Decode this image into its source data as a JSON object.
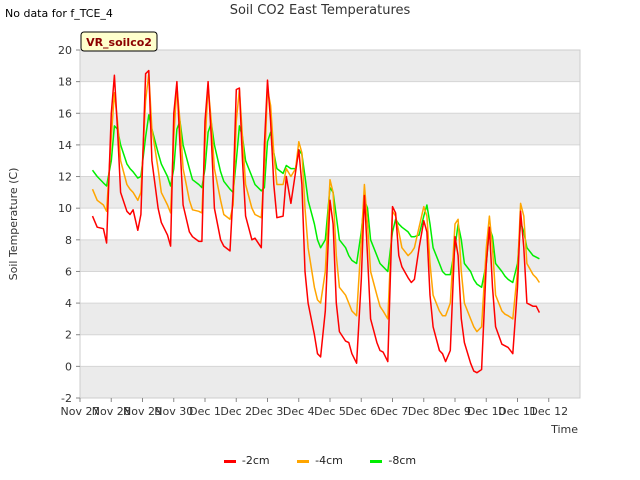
{
  "header": {
    "no_data_note": "No data for f_TCE_4",
    "title": "Soil CO2 East Temperatures"
  },
  "badge": {
    "label": "VR_soilco2"
  },
  "colors": {
    "band": "#ebebeb",
    "badge_bg": "#ffffcc",
    "badge_text": "#8b0000"
  },
  "chart_data": {
    "type": "line",
    "title": "Soil CO2 East Temperatures",
    "xlabel": "Time",
    "ylabel": "Soil Temperature (C)",
    "xlim": [
      0,
      16
    ],
    "ylim": [
      -2,
      20
    ],
    "yticks": [
      -2,
      0,
      2,
      4,
      6,
      8,
      10,
      12,
      14,
      16,
      18,
      20
    ],
    "xtick_labels": [
      "Nov 27",
      "Nov 28",
      "Nov 29",
      "Nov 30",
      "Dec 1",
      "Dec 2",
      "Dec 3",
      "Dec 4",
      "Dec 5",
      "Dec 6",
      "Dec 7",
      "Dec 8",
      "Dec 9",
      "Dec 10",
      "Dec 11",
      "Dec 12"
    ],
    "grid": true,
    "legend_position": "bottom",
    "series": [
      {
        "name": "-2cm",
        "color": "#ff0000",
        "x": [
          0.4,
          0.55,
          0.75,
          0.85,
          1.0,
          1.1,
          1.2,
          1.3,
          1.5,
          1.6,
          1.7,
          1.85,
          1.95,
          2.1,
          2.2,
          2.3,
          2.5,
          2.6,
          2.8,
          2.9,
          3.0,
          3.1,
          3.2,
          3.3,
          3.5,
          3.6,
          3.8,
          3.9,
          4.0,
          4.1,
          4.2,
          4.3,
          4.5,
          4.6,
          4.8,
          4.9,
          5.0,
          5.1,
          5.2,
          5.3,
          5.5,
          5.6,
          5.8,
          5.9,
          6.0,
          6.1,
          6.2,
          6.3,
          6.5,
          6.6,
          6.75,
          6.9,
          7.0,
          7.1,
          7.2,
          7.3,
          7.5,
          7.6,
          7.7,
          7.85,
          8.0,
          8.1,
          8.2,
          8.3,
          8.5,
          8.6,
          8.7,
          8.85,
          9.0,
          9.1,
          9.2,
          9.3,
          9.5,
          9.6,
          9.7,
          9.85,
          10.0,
          10.1,
          10.2,
          10.3,
          10.5,
          10.6,
          10.7,
          10.85,
          11.0,
          11.1,
          11.2,
          11.3,
          11.5,
          11.6,
          11.7,
          11.85,
          12.0,
          12.1,
          12.2,
          12.3,
          12.5,
          12.6,
          12.7,
          12.85,
          13.0,
          13.1,
          13.2,
          13.3,
          13.5,
          13.6,
          13.7,
          13.85,
          14.0,
          14.1,
          14.2,
          14.3,
          14.5,
          14.6,
          14.7
        ],
        "values": [
          9.5,
          8.8,
          8.7,
          7.8,
          16.0,
          18.4,
          15.0,
          11.0,
          9.8,
          9.6,
          9.9,
          8.6,
          9.6,
          18.5,
          18.7,
          13.0,
          10.0,
          9.1,
          8.3,
          7.6,
          16.0,
          18.0,
          14.0,
          10.2,
          8.5,
          8.2,
          7.9,
          7.9,
          15.5,
          18.0,
          14.5,
          10.0,
          8.0,
          7.6,
          7.3,
          11.0,
          17.5,
          17.6,
          13.0,
          9.5,
          8.0,
          8.1,
          7.5,
          14.0,
          18.1,
          15.5,
          11.5,
          9.4,
          9.5,
          12.0,
          10.3,
          12.3,
          13.7,
          11.5,
          6.0,
          4.0,
          2.0,
          0.8,
          0.6,
          3.5,
          10.5,
          9.0,
          4.0,
          2.2,
          1.6,
          1.5,
          0.8,
          0.2,
          5.5,
          10.8,
          7.0,
          3.0,
          1.5,
          1.0,
          0.9,
          0.3,
          10.1,
          9.7,
          7.0,
          6.3,
          5.6,
          5.3,
          5.5,
          7.5,
          9.2,
          8.5,
          4.5,
          2.5,
          1.0,
          0.8,
          0.3,
          1.0,
          8.2,
          7.0,
          3.0,
          1.5,
          0.2,
          -0.3,
          -0.4,
          -0.2,
          6.5,
          8.8,
          5.0,
          2.5,
          1.4,
          1.3,
          1.2,
          0.8,
          5.0,
          9.8,
          7.5,
          4.0,
          3.8,
          3.8,
          3.4
        ]
      },
      {
        "name": "-4cm",
        "color": "#ffa500",
        "x": [
          0.4,
          0.55,
          0.75,
          0.85,
          1.0,
          1.1,
          1.2,
          1.3,
          1.5,
          1.6,
          1.7,
          1.85,
          1.95,
          2.1,
          2.2,
          2.3,
          2.5,
          2.6,
          2.8,
          2.9,
          3.0,
          3.1,
          3.2,
          3.3,
          3.5,
          3.6,
          3.8,
          3.9,
          4.0,
          4.1,
          4.2,
          4.3,
          4.5,
          4.6,
          4.8,
          4.9,
          5.0,
          5.1,
          5.2,
          5.3,
          5.5,
          5.6,
          5.8,
          5.9,
          6.0,
          6.1,
          6.2,
          6.3,
          6.5,
          6.6,
          6.75,
          6.9,
          7.0,
          7.1,
          7.2,
          7.3,
          7.5,
          7.6,
          7.7,
          7.85,
          8.0,
          8.1,
          8.2,
          8.3,
          8.5,
          8.6,
          8.7,
          8.85,
          9.0,
          9.1,
          9.2,
          9.3,
          9.5,
          9.6,
          9.7,
          9.85,
          10.0,
          10.1,
          10.2,
          10.3,
          10.5,
          10.6,
          10.7,
          10.85,
          11.0,
          11.1,
          11.2,
          11.3,
          11.5,
          11.6,
          11.7,
          11.85,
          12.0,
          12.1,
          12.2,
          12.3,
          12.5,
          12.6,
          12.7,
          12.85,
          13.0,
          13.1,
          13.2,
          13.3,
          13.5,
          13.6,
          13.7,
          13.85,
          14.0,
          14.1,
          14.2,
          14.3,
          14.5,
          14.6,
          14.7
        ],
        "values": [
          11.2,
          10.5,
          10.2,
          9.8,
          14.5,
          17.3,
          15.5,
          13.0,
          11.5,
          11.2,
          11.0,
          10.5,
          11.0,
          16.8,
          18.5,
          15.0,
          12.5,
          11.0,
          10.2,
          9.7,
          14.5,
          17.7,
          15.5,
          12.5,
          10.5,
          9.9,
          9.8,
          9.7,
          14.0,
          17.7,
          15.5,
          12.5,
          10.5,
          9.6,
          9.3,
          10.2,
          15.5,
          17.5,
          14.5,
          11.5,
          10.0,
          9.6,
          9.4,
          12.5,
          17.5,
          16.5,
          13.5,
          11.5,
          11.5,
          12.5,
          12.0,
          12.5,
          14.2,
          13.5,
          10.0,
          7.5,
          5.0,
          4.2,
          4.0,
          6.0,
          11.8,
          11.0,
          7.0,
          5.0,
          4.5,
          4.0,
          3.5,
          3.2,
          8.0,
          11.5,
          9.0,
          6.0,
          4.5,
          3.8,
          3.5,
          3.0,
          9.8,
          9.5,
          8.5,
          7.5,
          7.0,
          7.2,
          7.5,
          8.8,
          10.1,
          9.5,
          6.5,
          4.5,
          3.5,
          3.2,
          3.2,
          4.0,
          9.0,
          9.3,
          6.0,
          4.0,
          3.0,
          2.5,
          2.2,
          2.5,
          7.5,
          9.5,
          7.5,
          4.5,
          3.5,
          3.3,
          3.2,
          3.0,
          6.0,
          10.3,
          9.5,
          6.5,
          5.8,
          5.6,
          5.3
        ]
      },
      {
        "name": "-8cm",
        "color": "#00ee00",
        "x": [
          0.4,
          0.55,
          0.75,
          0.85,
          1.0,
          1.1,
          1.2,
          1.3,
          1.5,
          1.6,
          1.7,
          1.85,
          1.95,
          2.1,
          2.2,
          2.3,
          2.5,
          2.6,
          2.8,
          2.9,
          3.0,
          3.1,
          3.2,
          3.3,
          3.5,
          3.6,
          3.8,
          3.9,
          4.0,
          4.1,
          4.2,
          4.3,
          4.5,
          4.6,
          4.8,
          4.9,
          5.0,
          5.1,
          5.2,
          5.3,
          5.5,
          5.6,
          5.8,
          5.9,
          6.0,
          6.1,
          6.2,
          6.3,
          6.5,
          6.6,
          6.75,
          6.9,
          7.0,
          7.1,
          7.2,
          7.3,
          7.5,
          7.6,
          7.7,
          7.85,
          8.0,
          8.1,
          8.2,
          8.3,
          8.5,
          8.6,
          8.7,
          8.85,
          9.0,
          9.1,
          9.2,
          9.3,
          9.5,
          9.6,
          9.7,
          9.85,
          10.0,
          10.1,
          10.2,
          10.3,
          10.5,
          10.6,
          10.7,
          10.85,
          11.0,
          11.1,
          11.2,
          11.3,
          11.5,
          11.6,
          11.7,
          11.85,
          12.0,
          12.1,
          12.2,
          12.3,
          12.5,
          12.6,
          12.7,
          12.85,
          13.0,
          13.1,
          13.2,
          13.3,
          13.5,
          13.6,
          13.7,
          13.85,
          14.0,
          14.1,
          14.2,
          14.3,
          14.5,
          14.6,
          14.7
        ],
        "values": [
          12.4,
          12.0,
          11.6,
          11.4,
          13.0,
          15.2,
          15.0,
          14.0,
          12.8,
          12.5,
          12.3,
          11.9,
          12.0,
          14.5,
          15.9,
          15.0,
          13.5,
          12.8,
          12.0,
          11.4,
          12.5,
          15.0,
          15.5,
          14.0,
          12.5,
          11.8,
          11.5,
          11.3,
          12.5,
          14.8,
          15.4,
          14.0,
          12.3,
          11.7,
          11.2,
          11.0,
          13.0,
          15.2,
          14.5,
          13.0,
          12.0,
          11.5,
          11.1,
          11.3,
          14.2,
          14.8,
          13.5,
          12.5,
          12.2,
          12.7,
          12.5,
          12.5,
          13.7,
          13.4,
          12.0,
          10.5,
          9.0,
          8.0,
          7.5,
          8.0,
          11.3,
          11.0,
          9.5,
          8.0,
          7.5,
          7.0,
          6.7,
          6.5,
          8.5,
          10.5,
          10.0,
          8.0,
          7.0,
          6.5,
          6.3,
          6.0,
          8.5,
          9.3,
          9.0,
          8.8,
          8.5,
          8.2,
          8.2,
          8.3,
          9.5,
          10.2,
          9.0,
          7.5,
          6.5,
          6.0,
          5.8,
          5.8,
          7.5,
          9.0,
          8.0,
          6.5,
          6.0,
          5.5,
          5.2,
          5.0,
          6.5,
          8.8,
          8.2,
          6.5,
          6.0,
          5.7,
          5.5,
          5.3,
          6.5,
          9.1,
          8.5,
          7.5,
          7.0,
          6.9,
          6.8
        ]
      }
    ]
  }
}
